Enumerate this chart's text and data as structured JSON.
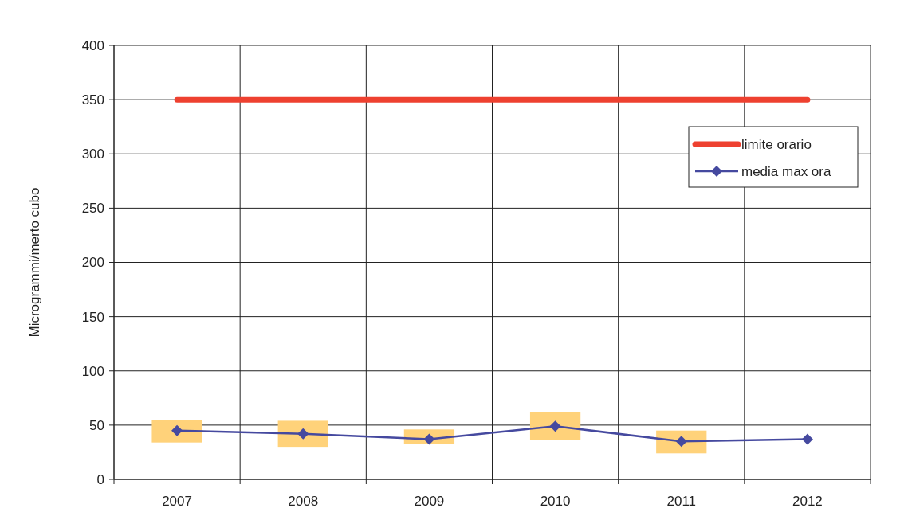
{
  "chart_data": {
    "type": "line",
    "ylabel": "Microgrammi/merto cubo",
    "categories": [
      "2007",
      "2008",
      "2009",
      "2010",
      "2011",
      "2012"
    ],
    "ylim": [
      0,
      400
    ],
    "yticks": [
      0,
      50,
      100,
      150,
      200,
      250,
      300,
      350,
      400
    ],
    "grid": true,
    "legend": "top right",
    "series": [
      {
        "type": "bar",
        "color": "#ffd27a",
        "base": [
          34,
          30,
          33,
          36,
          24,
          null
        ],
        "values": [
          21,
          24,
          13,
          26,
          21,
          null
        ]
      },
      {
        "name": "limite orario",
        "color": "#ee4130",
        "marker": "none",
        "values": [
          350,
          350,
          350,
          350,
          350,
          350
        ]
      },
      {
        "name": "media max ora",
        "color": "#45499f",
        "marker": "diamond",
        "values": [
          45,
          42,
          37,
          49,
          35,
          37
        ]
      }
    ]
  }
}
